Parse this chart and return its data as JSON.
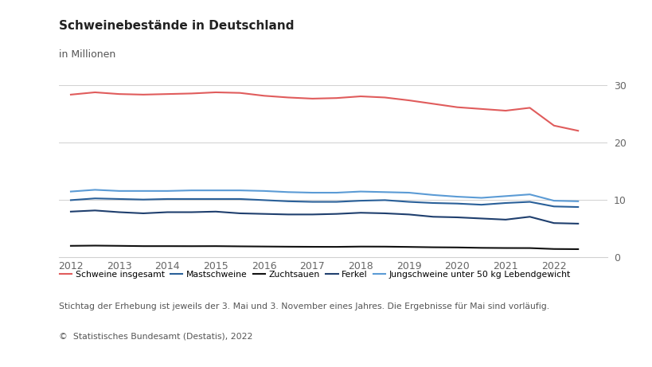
{
  "title": "Schweinebestände in Deutschland",
  "subtitle": "in Millionen",
  "footnote": "Stichtag der Erhebung ist jeweils der 3. Mai und 3. November eines Jahres. Die Ergebnisse für Mai sind vorläufig.",
  "source": "©  Statistisches Bundesamt (Destatis), 2022",
  "ylim": [
    0,
    32
  ],
  "yticks": [
    0,
    10,
    20,
    30
  ],
  "xlim": [
    2011.75,
    2023.1
  ],
  "xticks": [
    2012,
    2013,
    2014,
    2015,
    2016,
    2017,
    2018,
    2019,
    2020,
    2021,
    2022
  ],
  "x_values": [
    2012.0,
    2012.5,
    2013.0,
    2013.5,
    2014.0,
    2014.5,
    2015.0,
    2015.5,
    2016.0,
    2016.5,
    2017.0,
    2017.5,
    2018.0,
    2018.5,
    2019.0,
    2019.5,
    2020.0,
    2020.5,
    2021.0,
    2021.5,
    2022.0,
    2022.5
  ],
  "schweine_insgesamt": [
    28.3,
    28.7,
    28.4,
    28.3,
    28.4,
    28.5,
    28.7,
    28.6,
    28.1,
    27.8,
    27.6,
    27.7,
    28.0,
    27.8,
    27.3,
    26.7,
    26.1,
    25.8,
    25.5,
    26.0,
    22.9,
    22.0
  ],
  "mastschweine": [
    9.9,
    10.2,
    10.1,
    10.0,
    10.1,
    10.1,
    10.1,
    10.1,
    9.9,
    9.7,
    9.6,
    9.6,
    9.8,
    9.9,
    9.6,
    9.4,
    9.3,
    9.1,
    9.4,
    9.6,
    8.8,
    8.7
  ],
  "zuchtsauen": [
    1.93,
    1.97,
    1.93,
    1.88,
    1.88,
    1.87,
    1.88,
    1.84,
    1.81,
    1.78,
    1.76,
    1.75,
    1.8,
    1.79,
    1.74,
    1.68,
    1.65,
    1.58,
    1.55,
    1.54,
    1.38,
    1.35
  ],
  "ferkel": [
    7.9,
    8.1,
    7.8,
    7.6,
    7.8,
    7.8,
    7.9,
    7.6,
    7.5,
    7.4,
    7.4,
    7.5,
    7.7,
    7.6,
    7.4,
    7.0,
    6.9,
    6.7,
    6.5,
    7.0,
    5.9,
    5.8
  ],
  "jungschweine": [
    11.4,
    11.7,
    11.5,
    11.5,
    11.5,
    11.6,
    11.6,
    11.6,
    11.5,
    11.3,
    11.2,
    11.2,
    11.4,
    11.3,
    11.2,
    10.8,
    10.5,
    10.3,
    10.6,
    10.9,
    9.8,
    9.7
  ],
  "color_schweine": "#e05c5c",
  "color_mastschweine": "#2a6099",
  "color_zuchtsauen": "#111111",
  "color_ferkel": "#1f3f6e",
  "color_jungschweine": "#5b9bd5",
  "legend_labels": [
    "Schweine insgesamt",
    "Mastschweine",
    "Zuchtsauen",
    "Ferkel",
    "Jungschweine unter 50 kg Lebendgewicht"
  ],
  "background": "#ffffff",
  "grid_color": "#d0d0d0",
  "tick_color": "#666666",
  "title_color": "#222222",
  "text_color": "#555555"
}
